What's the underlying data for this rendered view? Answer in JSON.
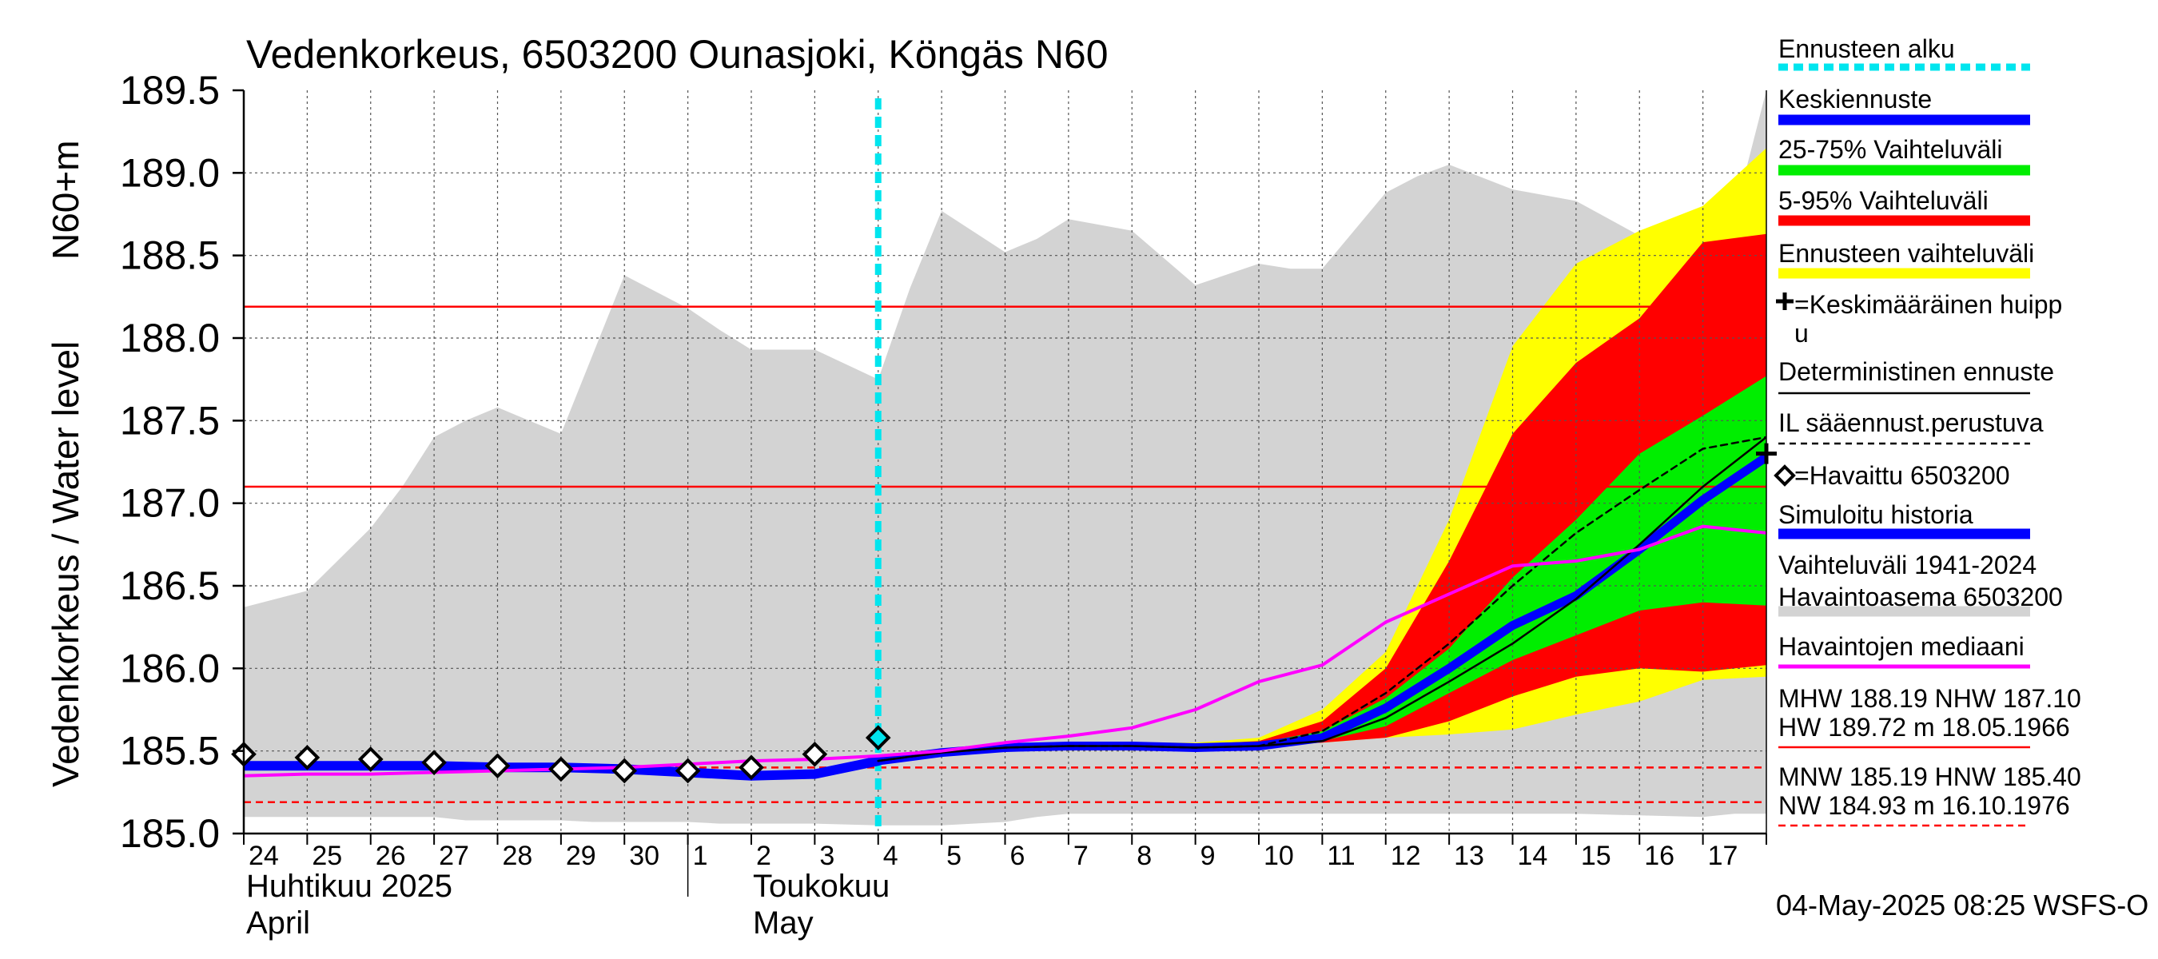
{
  "chart_data": {
    "type": "area",
    "title": "Vedenkorkeus, 6503200 Ounasjoki, Köngäs N60",
    "ylabel_upper": "N60+m",
    "ylabel_lower": "Vedenkorkeus / Water level",
    "ylim": [
      185.0,
      189.5
    ],
    "yticks": [
      185.0,
      185.5,
      186.0,
      186.5,
      187.0,
      187.5,
      188.0,
      188.5,
      189.0,
      189.5
    ],
    "grid": true,
    "x_unit": "day index (0 = 24 April 2025)",
    "xlim": [
      0,
      24
    ],
    "x_tick_labels": [
      "24",
      "25",
      "26",
      "27",
      "28",
      "29",
      "30",
      "1",
      "2",
      "3",
      "4",
      "5",
      "6",
      "7",
      "8",
      "9",
      "10",
      "11",
      "12",
      "13",
      "14",
      "15",
      "16",
      "17"
    ],
    "month_labels": [
      {
        "fi": "Huhtikuu  2025",
        "en": "April"
      },
      {
        "fi": "Toukokuu",
        "en": "May"
      }
    ],
    "forecast_start_x": 10,
    "reference_lines": [
      {
        "name": "MHW",
        "value": 188.19,
        "color": "#ff0000",
        "style": "solid"
      },
      {
        "name": "NHW",
        "value": 187.1,
        "color": "#ff0000",
        "style": "solid"
      },
      {
        "name": "MNW",
        "value": 185.19,
        "color": "#ff0000",
        "style": "dashed"
      },
      {
        "name": "HNW",
        "value": 185.4,
        "color": "#ff0000",
        "style": "dashed"
      }
    ],
    "historical_range": {
      "x": [
        0,
        1,
        2,
        2.5,
        3,
        3.5,
        4,
        5,
        5.5,
        6,
        7,
        7.5,
        8,
        9,
        10,
        10.5,
        11,
        12,
        12.5,
        13,
        14,
        15,
        16,
        16.5,
        17,
        18,
        18.5,
        19,
        20,
        21,
        22,
        23,
        23.5,
        24
      ],
      "high": [
        186.37,
        186.47,
        186.85,
        187.1,
        187.4,
        187.5,
        187.58,
        187.42,
        187.9,
        188.38,
        188.18,
        188.05,
        187.93,
        187.93,
        187.75,
        188.3,
        188.77,
        188.52,
        188.6,
        188.72,
        188.65,
        188.32,
        188.45,
        188.42,
        188.42,
        188.88,
        188.98,
        189.05,
        188.9,
        188.83,
        188.62,
        188.5,
        188.75,
        189.5
      ],
      "low": [
        185.1,
        185.1,
        185.1,
        185.1,
        185.1,
        185.08,
        185.08,
        185.08,
        185.07,
        185.07,
        185.07,
        185.06,
        185.06,
        185.06,
        185.05,
        185.05,
        185.05,
        185.07,
        185.1,
        185.12,
        185.12,
        185.12,
        185.12,
        185.12,
        185.12,
        185.12,
        185.12,
        185.12,
        185.12,
        185.12,
        185.11,
        185.1,
        185.12,
        185.12
      ]
    },
    "forecast_x": [
      10,
      11,
      12,
      13,
      14,
      15,
      16,
      17,
      18,
      19,
      20,
      21,
      22,
      23,
      24
    ],
    "bands": [
      {
        "name": "Ennusteen vaihteluväli",
        "color": "#ffff00",
        "upper": [
          185.45,
          185.48,
          185.52,
          185.54,
          185.55,
          185.55,
          185.58,
          185.75,
          186.1,
          186.9,
          187.95,
          188.45,
          188.65,
          188.8,
          189.15
        ],
        "lower": [
          185.45,
          185.48,
          185.52,
          185.53,
          185.52,
          185.52,
          185.53,
          185.55,
          185.58,
          185.6,
          185.63,
          185.72,
          185.8,
          185.93,
          185.95
        ]
      },
      {
        "name": "5-95% Vaihteluväli",
        "color": "#ff0000",
        "upper": [
          185.45,
          185.48,
          185.52,
          185.54,
          185.55,
          185.54,
          185.56,
          185.68,
          186.0,
          186.65,
          187.42,
          187.85,
          188.12,
          188.58,
          188.63
        ],
        "lower": [
          185.45,
          185.48,
          185.52,
          185.53,
          185.52,
          185.52,
          185.53,
          185.55,
          185.58,
          185.68,
          185.83,
          185.95,
          186.0,
          185.98,
          186.02
        ]
      },
      {
        "name": "25-75% Vaihteluväli",
        "color": "#00ee00",
        "upper": [
          185.45,
          185.48,
          185.52,
          185.54,
          185.54,
          185.54,
          185.55,
          185.62,
          185.82,
          186.12,
          186.55,
          186.9,
          187.3,
          187.53,
          187.77
        ],
        "lower": [
          185.45,
          185.48,
          185.52,
          185.53,
          185.52,
          185.52,
          185.53,
          185.56,
          185.65,
          185.85,
          186.05,
          186.2,
          186.35,
          186.4,
          186.38
        ]
      }
    ],
    "series": [
      {
        "name": "Simuloitu historia",
        "color": "#0000ff",
        "width": 12,
        "x": [
          0,
          1,
          2,
          3,
          4,
          5,
          6,
          7,
          8,
          9,
          10
        ],
        "y": [
          185.41,
          185.41,
          185.41,
          185.41,
          185.4,
          185.4,
          185.39,
          185.37,
          185.35,
          185.36,
          185.44
        ]
      },
      {
        "name": "Keskiennuste",
        "color": "#0000ff",
        "width": 11,
        "x": [
          10,
          11,
          12,
          13,
          14,
          15,
          16,
          17,
          18,
          19,
          20,
          21,
          22,
          23,
          24
        ],
        "y": [
          185.44,
          185.49,
          185.52,
          185.53,
          185.53,
          185.52,
          185.53,
          185.58,
          185.76,
          186.0,
          186.26,
          186.44,
          186.72,
          187.02,
          187.28
        ]
      },
      {
        "name": "Deterministinen ennuste",
        "color": "#000000",
        "width": 2.5,
        "dash": "",
        "x": [
          10,
          11,
          12,
          13,
          14,
          15,
          16,
          17,
          18,
          19,
          20,
          21,
          22,
          23,
          24
        ],
        "y": [
          185.44,
          185.49,
          185.52,
          185.53,
          185.53,
          185.52,
          185.53,
          185.56,
          185.7,
          185.92,
          186.15,
          186.42,
          186.75,
          187.1,
          187.4
        ]
      },
      {
        "name": "IL sääennust.perustuva",
        "color": "#000000",
        "width": 2.5,
        "dash": "8,6",
        "x": [
          10,
          11,
          12,
          13,
          14,
          15,
          16,
          17,
          18,
          19,
          20,
          21,
          22,
          23,
          24
        ],
        "y": [
          185.44,
          185.49,
          185.52,
          185.53,
          185.53,
          185.52,
          185.53,
          185.62,
          185.85,
          186.15,
          186.5,
          186.82,
          187.08,
          187.33,
          187.4
        ]
      },
      {
        "name": "Havaintojen mediaani",
        "color": "#ff00ff",
        "width": 4,
        "dash": "",
        "x": [
          0,
          1,
          2,
          3,
          4,
          5,
          6,
          7,
          8,
          9,
          10,
          11,
          12,
          13,
          14,
          15,
          16,
          17,
          18,
          19,
          20,
          21,
          22,
          23,
          24
        ],
        "y": [
          185.35,
          185.36,
          185.36,
          185.37,
          185.38,
          185.39,
          185.4,
          185.42,
          185.44,
          185.45,
          185.47,
          185.5,
          185.55,
          185.59,
          185.64,
          185.75,
          185.92,
          186.02,
          186.28,
          186.45,
          186.62,
          186.65,
          186.72,
          186.86,
          186.82
        ]
      }
    ],
    "observations": {
      "name": "Havaittu 6503200",
      "x": [
        0,
        1,
        2,
        3,
        4,
        5,
        6,
        7,
        8,
        9,
        10
      ],
      "y": [
        185.48,
        185.46,
        185.45,
        185.43,
        185.41,
        185.39,
        185.38,
        185.38,
        185.4,
        185.48,
        185.58
      ]
    },
    "mean_peak": {
      "name": "Keskimääräinen huippu",
      "x": 24,
      "y": 187.3
    },
    "legend": {
      "placement": "right",
      "items": [
        {
          "label": "Ennusteen alku",
          "color": "#00e5ee",
          "style": "dotted"
        },
        {
          "label": "Keskiennuste",
          "color": "#0000ff",
          "style": "thick"
        },
        {
          "label": "25-75% Vaihteluväli",
          "color": "#00ee00",
          "style": "thick"
        },
        {
          "label": "5-95% Vaihteluväli",
          "color": "#ff0000",
          "style": "thick"
        },
        {
          "label": "Ennusteen vaihteluväli",
          "color": "#ffff00",
          "style": "thick"
        },
        {
          "label": "=Keskimääräinen huipp",
          "label2": "u",
          "color": "#000000",
          "style": "plus"
        },
        {
          "label": "Deterministinen ennuste",
          "color": "#000000",
          "style": "thin"
        },
        {
          "label": "IL sääennust.perustuva",
          "color": "#000000",
          "style": "dashed"
        },
        {
          "label": "=Havaittu 6503200",
          "color": "#000000",
          "style": "diamond"
        },
        {
          "label": "Simuloitu historia",
          "color": "#0000ff",
          "style": "thick"
        },
        {
          "label": "Vaihteluväli 1941-2024",
          "label2": " Havaintoasema 6503200",
          "color": "#d3d3d3",
          "style": "grey"
        },
        {
          "label": "Havaintojen mediaani",
          "color": "#ff00ff",
          "style": "medium"
        }
      ],
      "stats": [
        {
          "text": "MHW 188.19 NHW 187.10",
          "text2": "HW 189.72 m 18.05.1966",
          "line_color": "#ff0000",
          "line_style": "solid"
        },
        {
          "text": "MNW 185.19 HNW 185.40",
          "text2": "NW 184.93 m 16.10.1976",
          "line_color": "#ff0000",
          "line_style": "dashed"
        }
      ]
    },
    "footer": "04-May-2025 08:25 WSFS-O"
  }
}
